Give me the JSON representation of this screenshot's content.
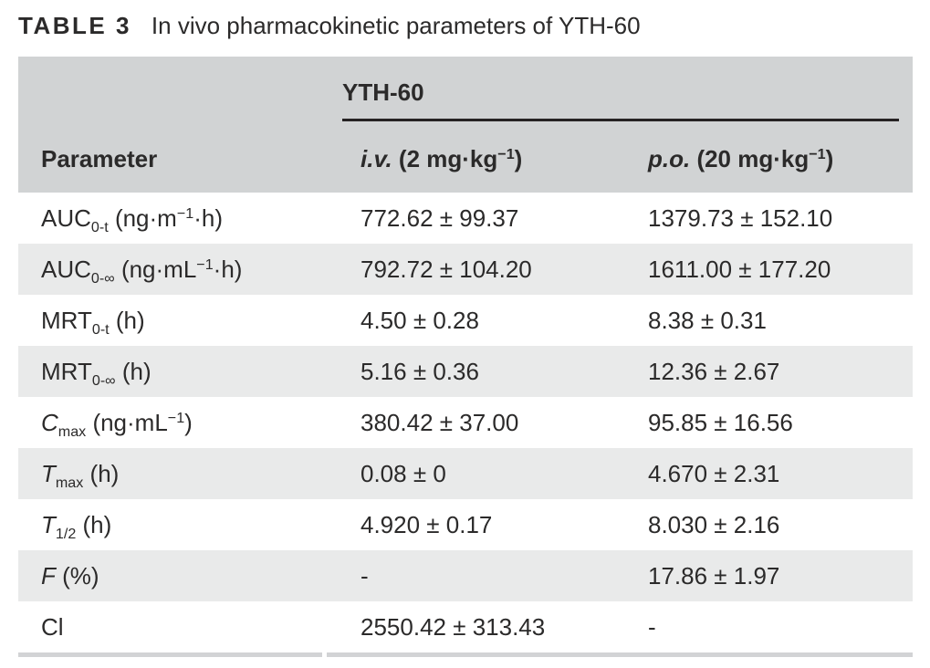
{
  "title": {
    "tag": "TABLE 3",
    "text": "In vivo pharmacokinetic parameters of YTH-60"
  },
  "table": {
    "group_header": "YTH-60",
    "columns": [
      {
        "key": "parameter",
        "label_html": "Parameter"
      },
      {
        "key": "iv",
        "label_html": "<i>i.v.</i> (2 mg·kg<sup>−1</sup>)"
      },
      {
        "key": "po",
        "label_html": "<i>p.o.</i> (20 mg·kg<sup>−1</sup>)"
      }
    ],
    "rows": [
      {
        "param_html": "AUC<sub>0-t</sub> (ng·m<sup>−1</sup>·h)",
        "iv": "772.62 ± 99.37",
        "po": "1379.73 ± 152.10"
      },
      {
        "param_html": "AUC<sub>0-∞</sub> (ng·mL<sup>−1</sup>·h)",
        "iv": "792.72 ± 104.20",
        "po": "1611.00 ± 177.20"
      },
      {
        "param_html": "MRT<sub>0-t</sub> (h)",
        "iv": "4.50 ± 0.28",
        "po": "8.38 ± 0.31"
      },
      {
        "param_html": "MRT<sub>0-∞</sub> (h)",
        "iv": "5.16 ± 0.36",
        "po": "12.36 ± 2.67"
      },
      {
        "param_html": "<i>C</i><sub>max</sub> (ng·mL<sup>−1</sup>)",
        "iv": "380.42 ± 37.00",
        "po": "95.85 ± 16.56"
      },
      {
        "param_html": "<i>T</i><sub>max</sub> (h)",
        "iv": "0.08 ± 0",
        "po": "4.670 ± 2.31"
      },
      {
        "param_html": "<i>T</i><sub>1/2</sub> (h)",
        "iv": "4.920 ± 0.17",
        "po": "8.030 ± 2.16"
      },
      {
        "param_html": "<i>F</i> (%)",
        "iv": "-",
        "po": "17.86 ± 1.97"
      },
      {
        "param_html": "Cl",
        "iv": "2550.42 ± 313.43",
        "po": "-"
      }
    ],
    "colors": {
      "header_bg": "#d1d3d4",
      "row_alt_bg": "#e9eaea",
      "rule_dark": "#262223",
      "bottom_border": "#d2d3d5",
      "text": "#2b2a2a"
    }
  }
}
